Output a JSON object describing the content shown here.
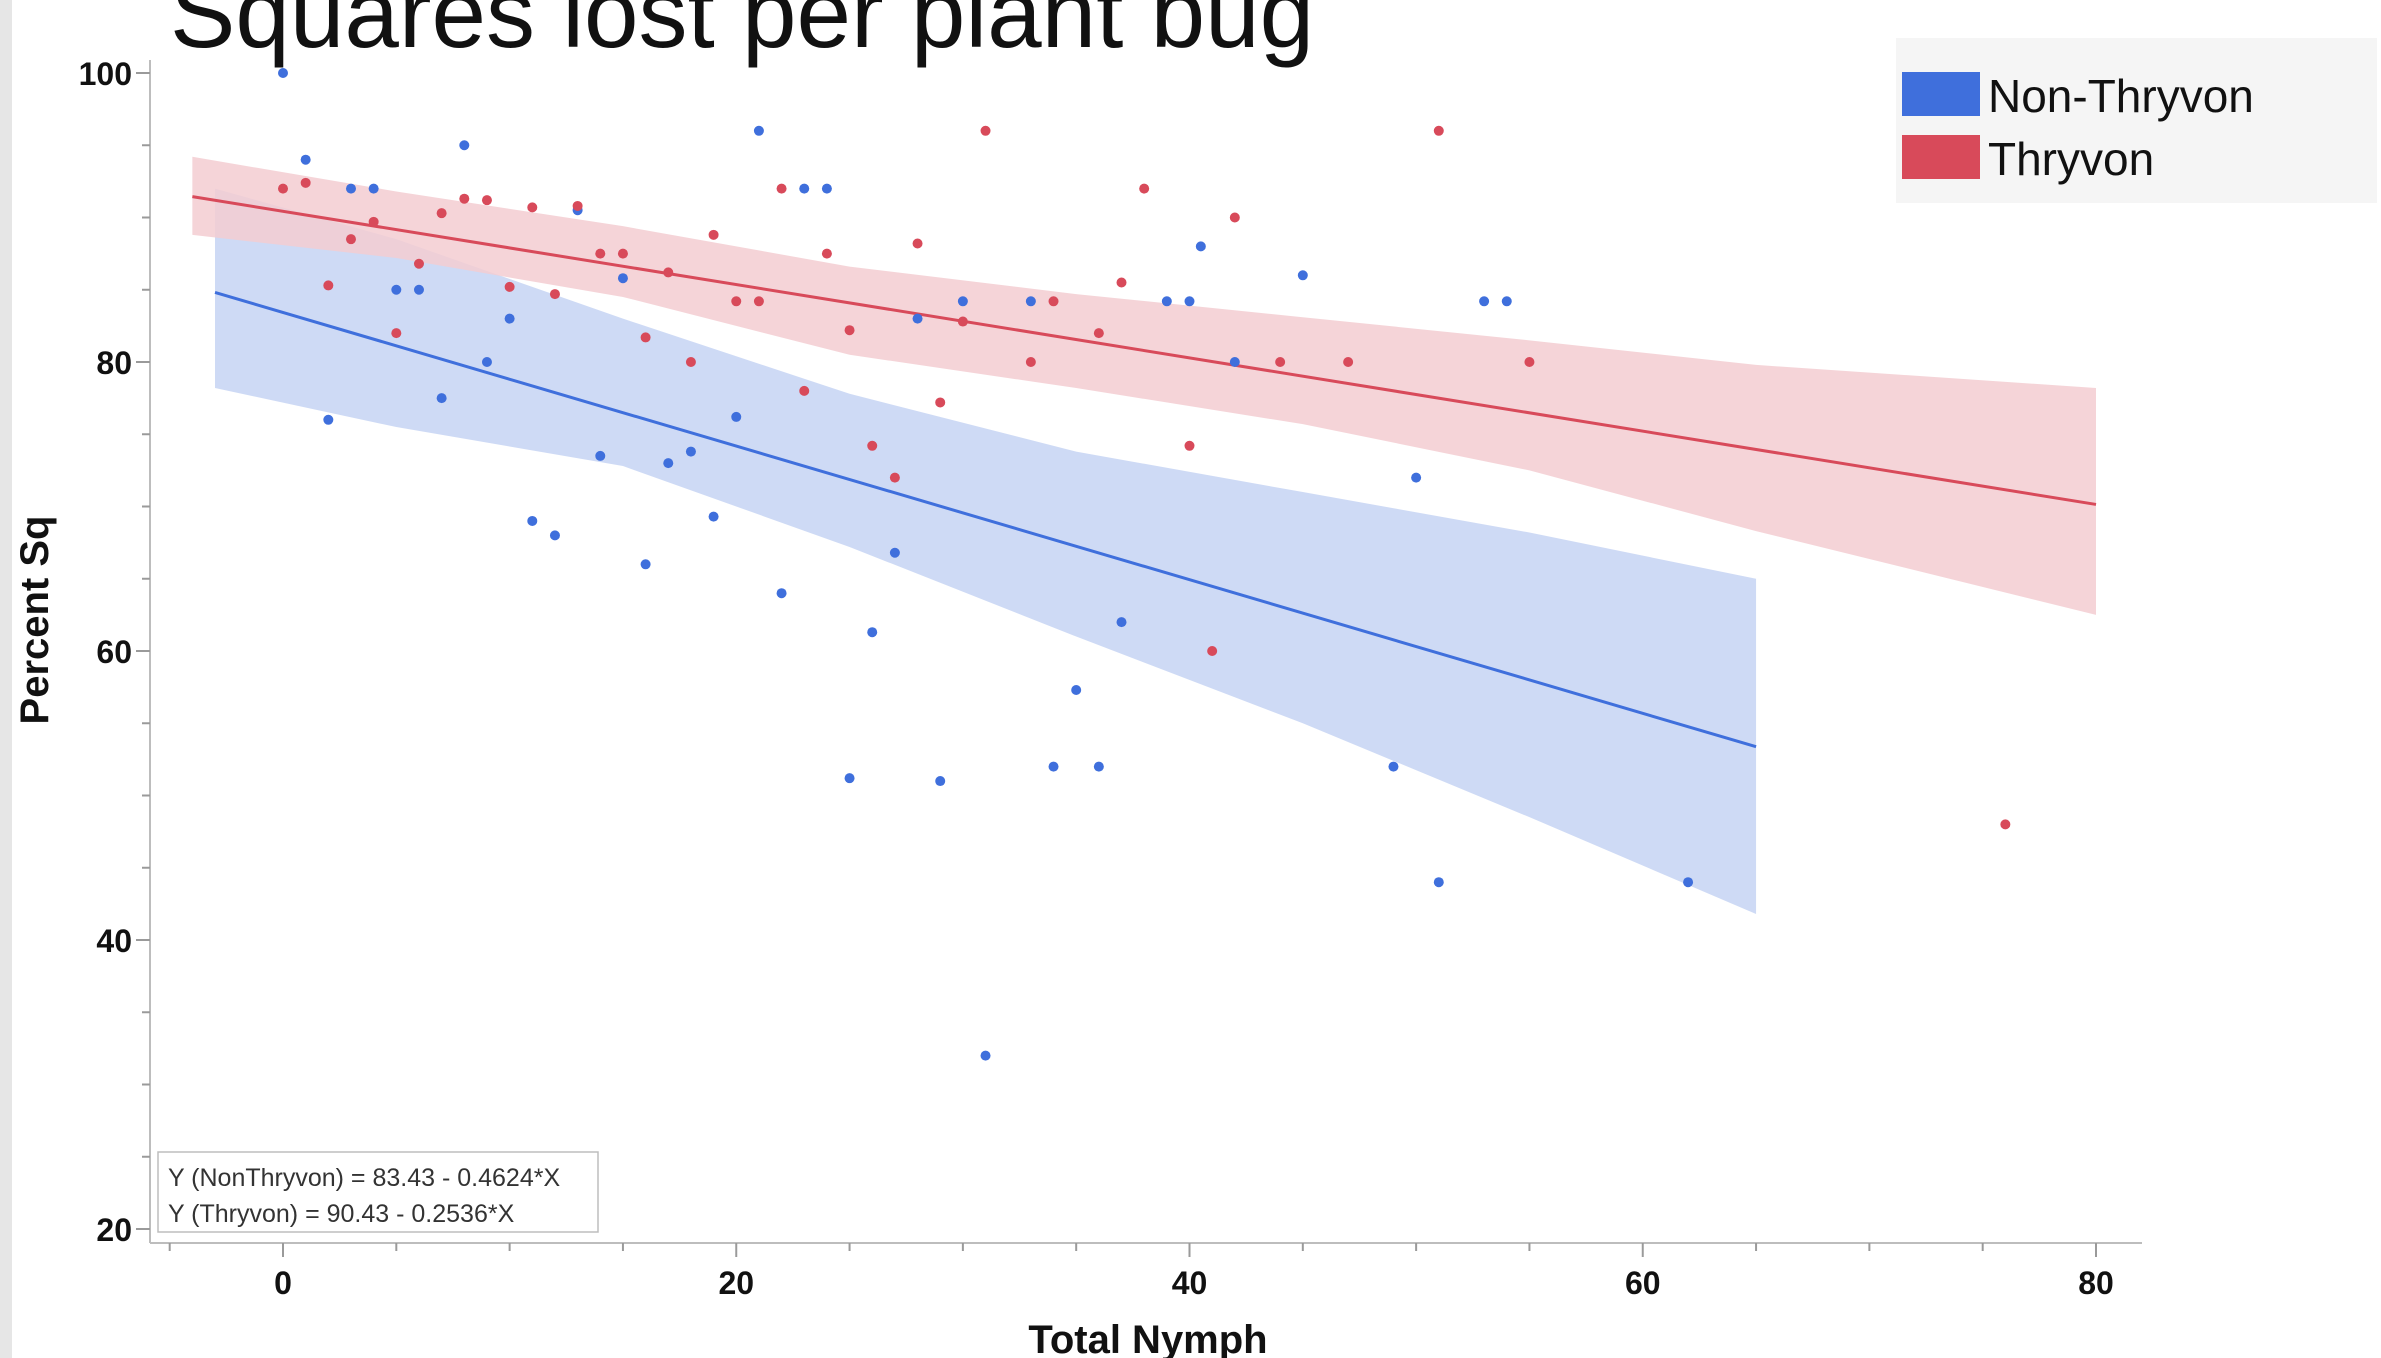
{
  "chart_data": {
    "type": "scatter",
    "title": "Squares lost per plant bug",
    "xlabel": "Total Nymph",
    "ylabel": "Percent Sq",
    "xlim": [
      -6,
      82
    ],
    "ylim": [
      19,
      101
    ],
    "xticks": [
      0,
      20,
      40,
      60,
      80
    ],
    "yticks": [
      20,
      40,
      60,
      80,
      100
    ],
    "legend_position": "top-right",
    "annotations": [
      "Y (NonThryvon) = 83.43 - 0.4624*X",
      "Y (Thryvon) = 90.43 - 0.2536*X"
    ],
    "series": [
      {
        "name": "Non-Thryvon",
        "color": "#3f6fdc",
        "band_color": "#c5d3f3",
        "fit": {
          "intercept": 83.43,
          "slope": -0.4624,
          "x_range": [
            -3,
            65
          ]
        },
        "band_upper": [
          [
            -3,
            92
          ],
          [
            5,
            88.5
          ],
          [
            15,
            83
          ],
          [
            25,
            77.8
          ],
          [
            35,
            73.8
          ],
          [
            45,
            71
          ],
          [
            55,
            68.2
          ],
          [
            65,
            65
          ]
        ],
        "band_lower": [
          [
            -3,
            78.2
          ],
          [
            5,
            75.5
          ],
          [
            15,
            72.8
          ],
          [
            25,
            67.2
          ],
          [
            35,
            61
          ],
          [
            45,
            55
          ],
          [
            55,
            48.5
          ],
          [
            65,
            41.8
          ]
        ],
        "points": [
          [
            0,
            100
          ],
          [
            1,
            94
          ],
          [
            2,
            76
          ],
          [
            3,
            92
          ],
          [
            4,
            92
          ],
          [
            5,
            85
          ],
          [
            6,
            85
          ],
          [
            7,
            77.5
          ],
          [
            8,
            95
          ],
          [
            9,
            80
          ],
          [
            10,
            83
          ],
          [
            11,
            69
          ],
          [
            12,
            68
          ],
          [
            13,
            90.5
          ],
          [
            14,
            73.5
          ],
          [
            15,
            85.8
          ],
          [
            16,
            66
          ],
          [
            17,
            73
          ],
          [
            18,
            73.8
          ],
          [
            19,
            69.3
          ],
          [
            20,
            76.2
          ],
          [
            21,
            96
          ],
          [
            22,
            64
          ],
          [
            23,
            92
          ],
          [
            24,
            92
          ],
          [
            25,
            51.2
          ],
          [
            26,
            61.3
          ],
          [
            27,
            66.8
          ],
          [
            28,
            83
          ],
          [
            29,
            51
          ],
          [
            30,
            84.2
          ],
          [
            31,
            32
          ],
          [
            33,
            84.2
          ],
          [
            34,
            52
          ],
          [
            35,
            57.3
          ],
          [
            36,
            52
          ],
          [
            37,
            62
          ],
          [
            39,
            84.2
          ],
          [
            40,
            84.2
          ],
          [
            40.5,
            88
          ],
          [
            42,
            80
          ],
          [
            45,
            86
          ],
          [
            49,
            52
          ],
          [
            50,
            72
          ],
          [
            51,
            44
          ],
          [
            53,
            84.2
          ],
          [
            54,
            84.2
          ],
          [
            62,
            44
          ]
        ]
      },
      {
        "name": "Thryvon",
        "color": "#d84a5a",
        "band_color": "#f3cdd1",
        "fit": {
          "intercept": 90.43,
          "slope": -0.2536,
          "x_range": [
            -4,
            80
          ]
        },
        "band_upper": [
          [
            -4,
            94.2
          ],
          [
            5,
            91.8
          ],
          [
            15,
            89.4
          ],
          [
            25,
            86.6
          ],
          [
            35,
            84.7
          ],
          [
            45,
            83.1
          ],
          [
            55,
            81.5
          ],
          [
            65,
            79.8
          ],
          [
            80,
            78.2
          ]
        ],
        "band_lower": [
          [
            -4,
            88.8
          ],
          [
            5,
            87.2
          ],
          [
            15,
            84.5
          ],
          [
            25,
            80.5
          ],
          [
            35,
            78.2
          ],
          [
            45,
            75.7
          ],
          [
            55,
            72.5
          ],
          [
            65,
            68.3
          ],
          [
            80,
            62.5
          ]
        ],
        "points": [
          [
            0,
            92
          ],
          [
            1,
            92.4
          ],
          [
            2,
            85.3
          ],
          [
            3,
            88.5
          ],
          [
            4,
            89.7
          ],
          [
            5,
            82
          ],
          [
            6,
            86.8
          ],
          [
            7,
            90.3
          ],
          [
            8,
            91.3
          ],
          [
            9,
            91.2
          ],
          [
            10,
            85.2
          ],
          [
            11,
            90.7
          ],
          [
            12,
            84.7
          ],
          [
            13,
            90.8
          ],
          [
            14,
            87.5
          ],
          [
            15,
            87.5
          ],
          [
            16,
            81.7
          ],
          [
            17,
            86.2
          ],
          [
            18,
            80
          ],
          [
            19,
            88.8
          ],
          [
            20,
            84.2
          ],
          [
            21,
            84.2
          ],
          [
            22,
            92
          ],
          [
            23,
            78
          ],
          [
            24,
            87.5
          ],
          [
            25,
            82.2
          ],
          [
            26,
            74.2
          ],
          [
            27,
            72
          ],
          [
            28,
            88.2
          ],
          [
            29,
            77.2
          ],
          [
            30,
            82.8
          ],
          [
            31,
            96
          ],
          [
            33,
            80
          ],
          [
            34,
            84.2
          ],
          [
            36,
            82
          ],
          [
            37,
            85.5
          ],
          [
            38,
            92
          ],
          [
            40,
            74.2
          ],
          [
            41,
            60
          ],
          [
            42,
            90
          ],
          [
            44,
            80
          ],
          [
            47,
            80
          ],
          [
            51,
            96
          ],
          [
            55,
            80
          ],
          [
            76,
            48
          ]
        ]
      }
    ]
  }
}
